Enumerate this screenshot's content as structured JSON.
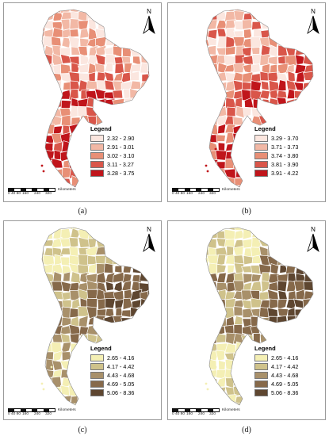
{
  "panels": [
    {
      "caption": "(a)",
      "north_label": "N",
      "legend_title": "Legend",
      "legend": [
        {
          "label": "2.32 - 2.90",
          "color": "#fbe6df"
        },
        {
          "label": "2.91 - 3.01",
          "color": "#f2b8a5"
        },
        {
          "label": "3.02 - 3.10",
          "color": "#e88f76"
        },
        {
          "label": "3.11 - 3.27",
          "color": "#d9564a"
        },
        {
          "label": "3.28 - 3.75",
          "color": "#c0151b"
        }
      ],
      "scale_labels": [
        "0",
        "40 80",
        "160",
        "240",
        "320"
      ],
      "scale_unit": "Kilometers"
    },
    {
      "caption": "(b)",
      "north_label": "N",
      "legend_title": "Legend",
      "legend": [
        {
          "label": "3.29 - 3.70",
          "color": "#fbe6df"
        },
        {
          "label": "3.71 - 3.73",
          "color": "#f2b8a5"
        },
        {
          "label": "3.74 - 3.80",
          "color": "#e88f76"
        },
        {
          "label": "3.81 - 3.90",
          "color": "#d9564a"
        },
        {
          "label": "3.91 - 4.22",
          "color": "#c0151b"
        }
      ],
      "scale_labels": [
        "0",
        "40 80",
        "160",
        "240",
        "320"
      ],
      "scale_unit": "Kilometers"
    },
    {
      "caption": "(c)",
      "north_label": "N",
      "legend_title": "Legend",
      "legend": [
        {
          "label": "2.65 - 4.16",
          "color": "#f4efb4"
        },
        {
          "label": "4.17 - 4.42",
          "color": "#cfc28b"
        },
        {
          "label": "4.43 - 4.68",
          "color": "#a8906a"
        },
        {
          "label": "4.69 - 5.05",
          "color": "#86694a"
        },
        {
          "label": "5.06 - 8.36",
          "color": "#5e4630"
        }
      ],
      "scale_labels": [
        "0",
        "40 80",
        "160",
        "240",
        "320"
      ],
      "scale_unit": "Kilometers"
    },
    {
      "caption": "(d)",
      "north_label": "N",
      "legend_title": "Legend",
      "legend": [
        {
          "label": "2.65 - 4.16",
          "color": "#f4efb4"
        },
        {
          "label": "4.17 - 4.42",
          "color": "#cfc28b"
        },
        {
          "label": "4.43 - 4.68",
          "color": "#a8906a"
        },
        {
          "label": "4.69 - 5.05",
          "color": "#86694a"
        },
        {
          "label": "5.06 - 8.36",
          "color": "#5e4630"
        }
      ],
      "scale_labels": [
        "0",
        "40 80",
        "160",
        "240",
        "320"
      ],
      "scale_unit": "Kilometers"
    }
  ]
}
